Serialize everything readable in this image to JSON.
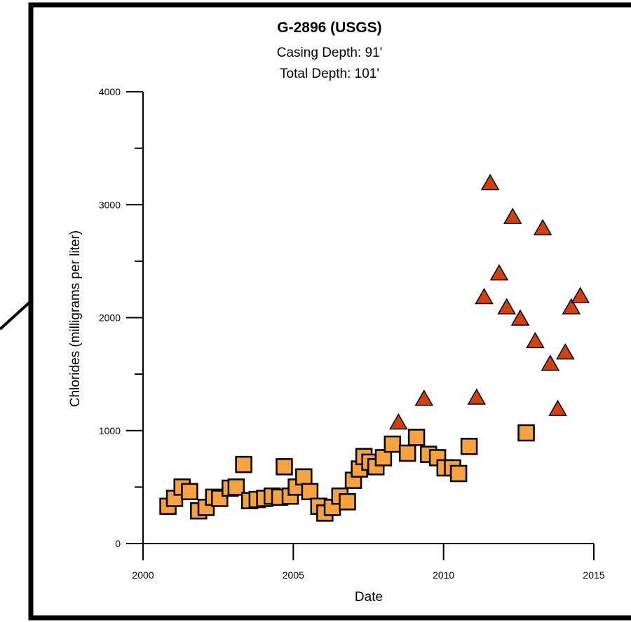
{
  "chart_data": {
    "type": "scatter",
    "title": "G-2896 (USGS)",
    "subtitle_lines": [
      "Casing Depth:  91'",
      "Total Depth:  101'"
    ],
    "xlabel": "Date",
    "ylabel": "Chlorides (milligrams per liter)",
    "xlim": [
      2000,
      2015
    ],
    "ylim": [
      0,
      4000
    ],
    "x_ticks": [
      2000,
      2005,
      2010,
      2015
    ],
    "y_ticks": [
      0,
      1000,
      2000,
      3000,
      4000
    ],
    "grid": false,
    "legend": "none",
    "colors": {
      "squares": "#f7a23e",
      "triangles": "#d43f10",
      "outline": "#000000"
    },
    "series": [
      {
        "marker": "square",
        "points": [
          {
            "x": 2000.83,
            "y": 330
          },
          {
            "x": 2001.05,
            "y": 400
          },
          {
            "x": 2001.3,
            "y": 500
          },
          {
            "x": 2001.55,
            "y": 460
          },
          {
            "x": 2001.85,
            "y": 290
          },
          {
            "x": 2002.1,
            "y": 320
          },
          {
            "x": 2002.35,
            "y": 410
          },
          {
            "x": 2002.55,
            "y": 400
          },
          {
            "x": 2002.9,
            "y": 490
          },
          {
            "x": 2003.1,
            "y": 500
          },
          {
            "x": 2003.35,
            "y": 700
          },
          {
            "x": 2003.55,
            "y": 380
          },
          {
            "x": 2003.8,
            "y": 390
          },
          {
            "x": 2004.05,
            "y": 400
          },
          {
            "x": 2004.3,
            "y": 420
          },
          {
            "x": 2004.55,
            "y": 410
          },
          {
            "x": 2004.7,
            "y": 680
          },
          {
            "x": 2004.9,
            "y": 420
          },
          {
            "x": 2005.1,
            "y": 500
          },
          {
            "x": 2005.35,
            "y": 590
          },
          {
            "x": 2005.55,
            "y": 460
          },
          {
            "x": 2005.85,
            "y": 330
          },
          {
            "x": 2006.05,
            "y": 270
          },
          {
            "x": 2006.3,
            "y": 320
          },
          {
            "x": 2006.55,
            "y": 420
          },
          {
            "x": 2006.8,
            "y": 370
          },
          {
            "x": 2007.0,
            "y": 560
          },
          {
            "x": 2007.2,
            "y": 660
          },
          {
            "x": 2007.35,
            "y": 770
          },
          {
            "x": 2007.55,
            "y": 720
          },
          {
            "x": 2007.75,
            "y": 680
          },
          {
            "x": 2008.0,
            "y": 760
          },
          {
            "x": 2008.3,
            "y": 880
          },
          {
            "x": 2008.8,
            "y": 800
          },
          {
            "x": 2009.1,
            "y": 940
          },
          {
            "x": 2009.5,
            "y": 790
          },
          {
            "x": 2009.8,
            "y": 760
          },
          {
            "x": 2010.05,
            "y": 670
          },
          {
            "x": 2010.3,
            "y": 670
          },
          {
            "x": 2010.5,
            "y": 620
          },
          {
            "x": 2010.85,
            "y": 860
          },
          {
            "x": 2012.75,
            "y": 980
          }
        ]
      },
      {
        "marker": "triangle",
        "points": [
          {
            "x": 2008.5,
            "y": 1070
          },
          {
            "x": 2009.35,
            "y": 1280
          },
          {
            "x": 2011.1,
            "y": 1290
          },
          {
            "x": 2011.35,
            "y": 2180
          },
          {
            "x": 2011.55,
            "y": 3190
          },
          {
            "x": 2011.85,
            "y": 2390
          },
          {
            "x": 2012.1,
            "y": 2090
          },
          {
            "x": 2012.3,
            "y": 2890
          },
          {
            "x": 2012.55,
            "y": 1990
          },
          {
            "x": 2013.05,
            "y": 1790
          },
          {
            "x": 2013.3,
            "y": 2790
          },
          {
            "x": 2013.55,
            "y": 1590
          },
          {
            "x": 2013.8,
            "y": 1190
          },
          {
            "x": 2014.05,
            "y": 1690
          },
          {
            "x": 2014.25,
            "y": 2090
          },
          {
            "x": 2014.55,
            "y": 2190
          }
        ]
      }
    ]
  }
}
